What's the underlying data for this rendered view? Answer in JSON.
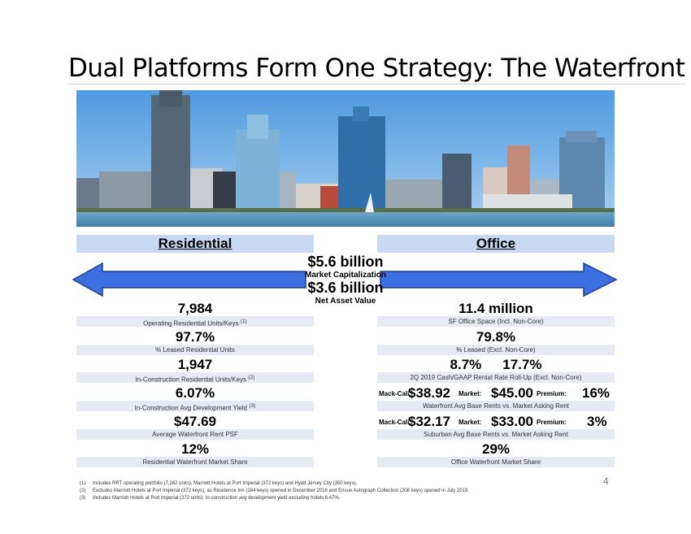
{
  "title": "Dual Platforms Form One Strategy: The Waterfront",
  "bands": {
    "left": "Residential",
    "right": "Office"
  },
  "center": {
    "market_cap_value": "$5.6 billion",
    "market_cap_label": "Market Capitalization",
    "nav_value": "$3.6 billion",
    "nav_label": "Net Asset Value"
  },
  "residential": [
    {
      "value": "7,984",
      "label": "Operating Residential Units/Keys",
      "note": "(1)"
    },
    {
      "value": "97.7%",
      "label": "% Leased Residential Units",
      "note": ""
    },
    {
      "value": "1,947",
      "label": "In-Construction Residential Units/Keys",
      "note": "(2)"
    },
    {
      "value": "6.07%",
      "label": "In-Construction Avg Development Yield",
      "note": "(3)"
    },
    {
      "value": "$47.69",
      "label": "Average Waterfront Rent PSF",
      "note": ""
    },
    {
      "value": "12%",
      "label": "Residential Waterfront Market Share",
      "note": ""
    }
  ],
  "office": {
    "sf": {
      "value": "11.4 million",
      "label": "SF Office Space (Incl. Non-Core)"
    },
    "leased": {
      "value": "79.8%",
      "label": "% Leased (Excl. Non-Core)"
    },
    "rollup": {
      "cash": "8.7%",
      "gaap": "17.7%",
      "label": "2Q 2019 Cash/GAAP Rental Rate Roll-Up (Excl. Non-Core)"
    },
    "waterfront_rents": {
      "mc_label": "Mack-Cali:",
      "mc_value": "$38.92",
      "mkt_label": "Market:",
      "mkt_value": "$45.00",
      "prem_label": "Premium:",
      "prem_value": "16%",
      "label": "Waterfront Avg Base Rents vs. Market Asking Rent"
    },
    "suburban_rents": {
      "mc_label": "Mack-Cali:",
      "mc_value": "$32.17",
      "mkt_label": "Market:",
      "mkt_value": "$33.00",
      "prem_label": "Premium:",
      "prem_value": "3%",
      "label": "Suburban Avg Base Rents vs. Market Asking Rent"
    },
    "share": {
      "value": "29%",
      "label": "Office Waterfront Market Share"
    }
  },
  "footnotes": [
    {
      "n": "(1)",
      "text": "Includes RRT operating portfolio (7,262 units), Marriott Hotels at Port Imperial (372 keys) and Hyatt Jersey City (350 keys)."
    },
    {
      "n": "(2)",
      "text": "Excludes Marriott Hotels at Port Imperial (372 keys), as Residence Inn (164 keys) opened in December 2018 and Envue Autograph Collection (208 keys) opened in July 2019."
    },
    {
      "n": "(3)",
      "text": "Includes Marriott Hotels at Port Imperial (372 units). In-construction avg development yield excluding hotels 6.47%."
    }
  ],
  "page_number": "4",
  "colors": {
    "arrow_fill": "#3e6fe0",
    "band_bg": "#c9d9f2",
    "label_bar_bg": "#e6eaf2"
  }
}
